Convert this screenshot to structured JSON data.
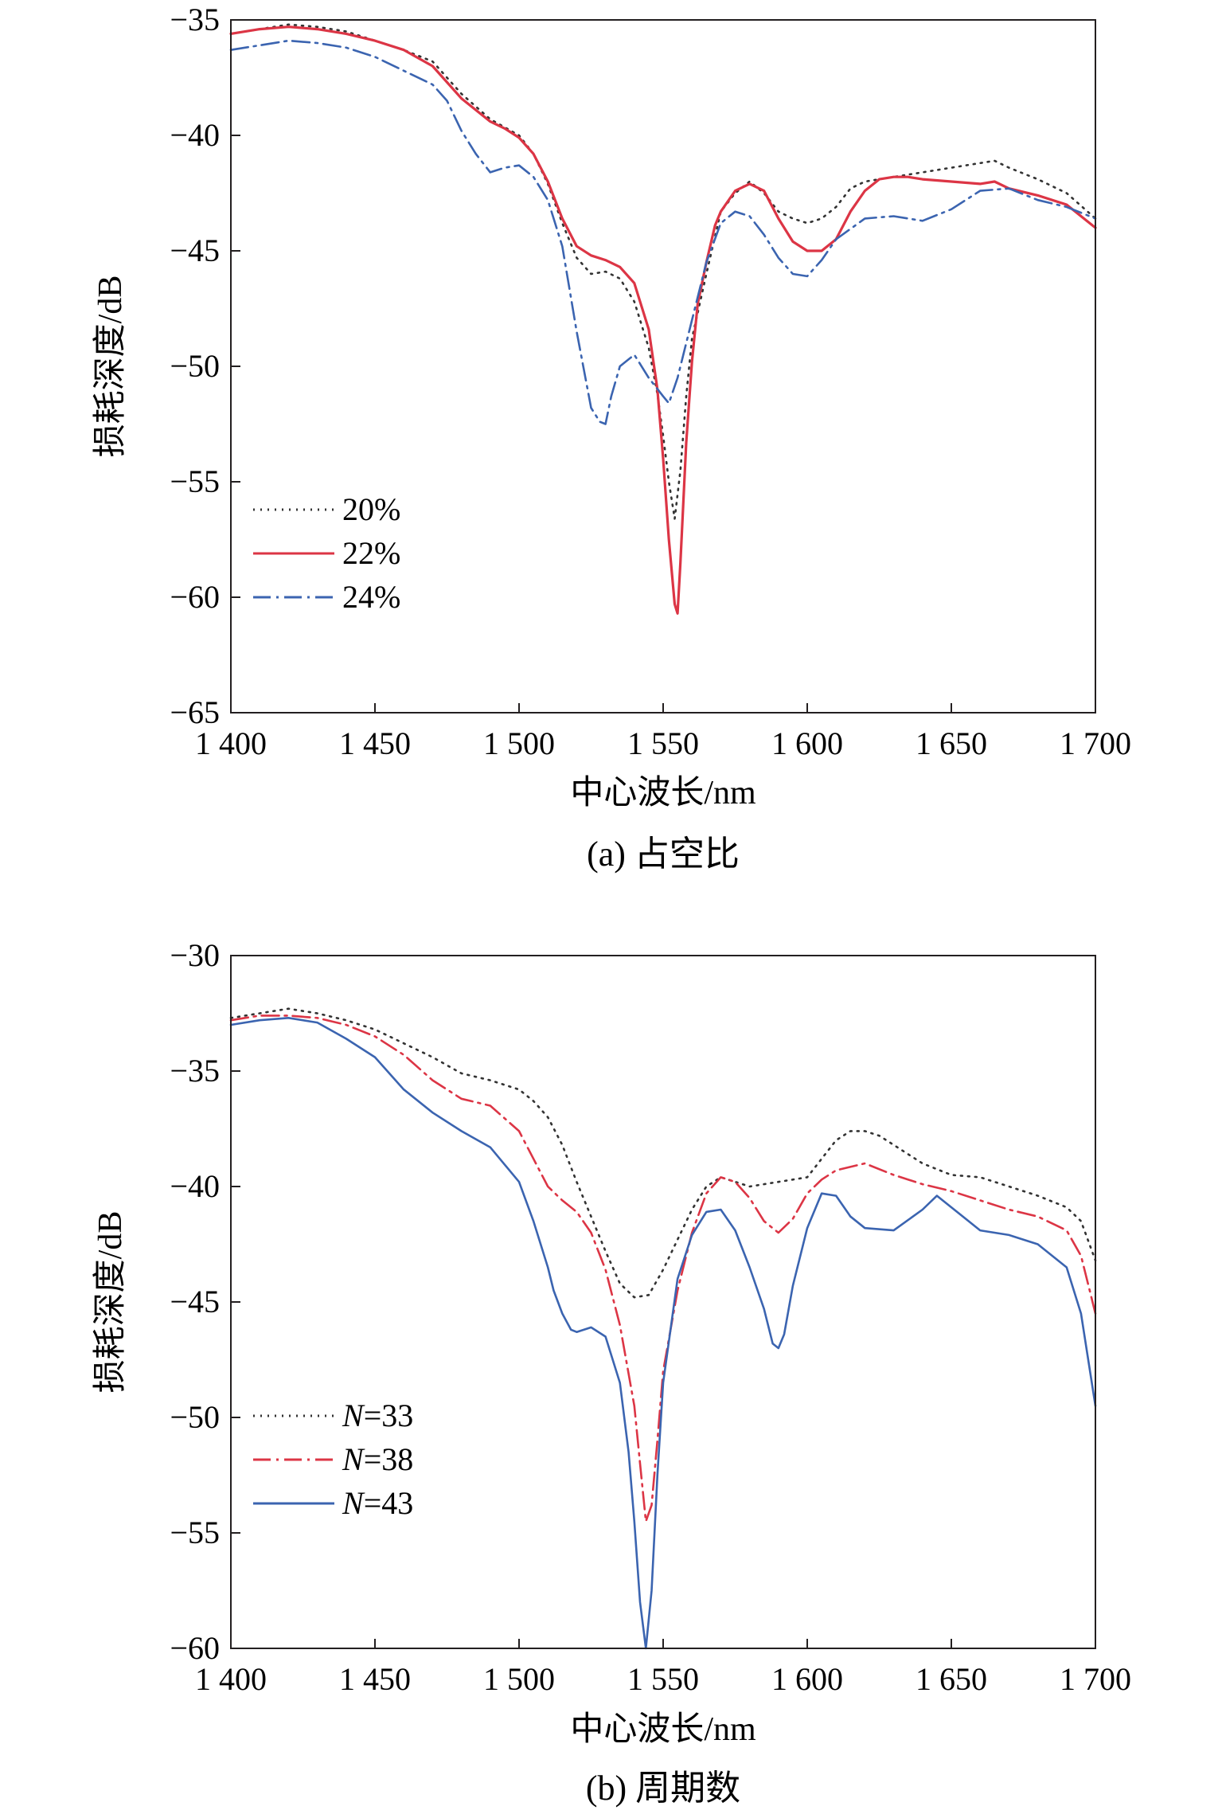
{
  "chart_data": [
    {
      "type": "line",
      "title": "",
      "caption": "(a) 占空比",
      "xlabel": "中心波长/nm",
      "ylabel": "损耗深度/dB",
      "xlim": [
        1400,
        1700
      ],
      "ylim": [
        -65,
        -35
      ],
      "xticks": [
        1400,
        1450,
        1500,
        1550,
        1600,
        1650,
        1700
      ],
      "xtick_labels": [
        "1 400",
        "1 450",
        "1 500",
        "1 550",
        "1 600",
        "1 650",
        "1 700"
      ],
      "yticks": [
        -35,
        -40,
        -45,
        -50,
        -55,
        -60,
        -65
      ],
      "ytick_labels": [
        "−35",
        "−40",
        "−45",
        "−50",
        "−55",
        "−60",
        "−65"
      ],
      "grid": false,
      "legend": "lower-left",
      "series": [
        {
          "name": "20%",
          "color": "#333333",
          "style": "dotted",
          "x": [
            1400,
            1410,
            1420,
            1430,
            1440,
            1450,
            1460,
            1470,
            1480,
            1490,
            1500,
            1505,
            1510,
            1515,
            1520,
            1525,
            1530,
            1535,
            1540,
            1545,
            1548,
            1550,
            1552,
            1554,
            1556,
            1558,
            1560,
            1565,
            1570,
            1575,
            1580,
            1585,
            1590,
            1595,
            1600,
            1605,
            1610,
            1615,
            1620,
            1625,
            1630,
            1640,
            1650,
            1660,
            1665,
            1670,
            1680,
            1690,
            1700
          ],
          "y": [
            -35.6,
            -35.4,
            -35.2,
            -35.3,
            -35.5,
            -35.9,
            -36.3,
            -36.8,
            -38.2,
            -39.3,
            -40.0,
            -40.8,
            -42.1,
            -43.8,
            -45.3,
            -46.0,
            -45.9,
            -46.2,
            -47.2,
            -49.2,
            -51.2,
            -53.0,
            -55.0,
            -56.6,
            -54.5,
            -51.3,
            -48.8,
            -46.0,
            -43.3,
            -42.5,
            -42.0,
            -42.5,
            -43.3,
            -43.6,
            -43.8,
            -43.6,
            -43.1,
            -42.3,
            -42.0,
            -41.9,
            -41.8,
            -41.6,
            -41.4,
            -41.2,
            -41.1,
            -41.4,
            -41.9,
            -42.5,
            -43.6
          ]
        },
        {
          "name": "22%",
          "color": "#dc3545",
          "style": "solid",
          "x": [
            1400,
            1410,
            1420,
            1430,
            1440,
            1450,
            1460,
            1470,
            1480,
            1490,
            1495,
            1500,
            1505,
            1510,
            1515,
            1520,
            1525,
            1530,
            1535,
            1540,
            1545,
            1548,
            1550,
            1552,
            1554,
            1555,
            1556,
            1558,
            1560,
            1562,
            1565,
            1568,
            1570,
            1575,
            1580,
            1585,
            1590,
            1595,
            1600,
            1605,
            1610,
            1615,
            1620,
            1625,
            1630,
            1635,
            1640,
            1650,
            1660,
            1665,
            1670,
            1680,
            1690,
            1700
          ],
          "y": [
            -35.6,
            -35.4,
            -35.3,
            -35.4,
            -35.6,
            -35.9,
            -36.3,
            -37.0,
            -38.4,
            -39.4,
            -39.7,
            -40.1,
            -40.8,
            -42.0,
            -43.6,
            -44.8,
            -45.2,
            -45.4,
            -45.7,
            -46.4,
            -48.4,
            -51.0,
            -54.0,
            -57.5,
            -60.3,
            -60.7,
            -58.5,
            -53.3,
            -49.8,
            -47.3,
            -45.5,
            -43.9,
            -43.3,
            -42.4,
            -42.1,
            -42.4,
            -43.6,
            -44.6,
            -45.0,
            -45.0,
            -44.5,
            -43.3,
            -42.4,
            -41.9,
            -41.8,
            -41.8,
            -41.9,
            -42.0,
            -42.1,
            -42.0,
            -42.3,
            -42.6,
            -43.0,
            -44.0
          ]
        },
        {
          "name": "24%",
          "color": "#3b64b0",
          "style": "dashdot",
          "x": [
            1400,
            1410,
            1420,
            1430,
            1440,
            1450,
            1460,
            1470,
            1475,
            1480,
            1485,
            1490,
            1495,
            1500,
            1505,
            1510,
            1515,
            1520,
            1525,
            1528,
            1530,
            1532,
            1535,
            1540,
            1545,
            1550,
            1552,
            1555,
            1560,
            1565,
            1570,
            1575,
            1580,
            1585,
            1590,
            1595,
            1600,
            1605,
            1610,
            1620,
            1630,
            1640,
            1650,
            1660,
            1670,
            1680,
            1690,
            1700
          ],
          "y": [
            -36.3,
            -36.1,
            -35.9,
            -36.0,
            -36.2,
            -36.6,
            -37.2,
            -37.8,
            -38.5,
            -39.8,
            -40.8,
            -41.6,
            -41.4,
            -41.3,
            -41.8,
            -42.8,
            -44.8,
            -48.5,
            -51.8,
            -52.4,
            -52.5,
            -51.3,
            -50.0,
            -49.5,
            -50.5,
            -51.3,
            -51.6,
            -50.5,
            -48.0,
            -45.5,
            -43.8,
            -43.3,
            -43.5,
            -44.3,
            -45.3,
            -46.0,
            -46.1,
            -45.4,
            -44.5,
            -43.6,
            -43.5,
            -43.7,
            -43.2,
            -42.4,
            -42.3,
            -42.8,
            -43.1,
            -43.6
          ]
        }
      ]
    },
    {
      "type": "line",
      "title": "",
      "caption": "(b) 周期数",
      "xlabel": "中心波长/nm",
      "ylabel": "损耗深度/dB",
      "xlim": [
        1400,
        1700
      ],
      "ylim": [
        -60,
        -30
      ],
      "xticks": [
        1400,
        1450,
        1500,
        1550,
        1600,
        1650,
        1700
      ],
      "xtick_labels": [
        "1 400",
        "1 450",
        "1 500",
        "1 550",
        "1 600",
        "1 650",
        "1 700"
      ],
      "yticks": [
        -30,
        -35,
        -40,
        -45,
        -50,
        -55,
        -60
      ],
      "ytick_labels": [
        "−30",
        "−35",
        "−40",
        "−45",
        "−50",
        "−55",
        "−60"
      ],
      "grid": false,
      "legend": "lower-left",
      "series": [
        {
          "name": "N=33",
          "color": "#333333",
          "style": "dotted",
          "x": [
            1400,
            1410,
            1420,
            1430,
            1440,
            1450,
            1460,
            1470,
            1480,
            1490,
            1500,
            1505,
            1510,
            1515,
            1520,
            1525,
            1530,
            1535,
            1540,
            1545,
            1550,
            1555,
            1560,
            1565,
            1570,
            1575,
            1580,
            1590,
            1600,
            1605,
            1610,
            1615,
            1620,
            1625,
            1630,
            1640,
            1650,
            1660,
            1670,
            1680,
            1690,
            1695,
            1700
          ],
          "y": [
            -32.7,
            -32.5,
            -32.3,
            -32.5,
            -32.8,
            -33.2,
            -33.8,
            -34.4,
            -35.1,
            -35.4,
            -35.8,
            -36.3,
            -37.0,
            -38.2,
            -39.8,
            -41.3,
            -42.8,
            -44.2,
            -44.8,
            -44.7,
            -43.6,
            -42.3,
            -41.0,
            -40.0,
            -39.6,
            -39.8,
            -40.0,
            -39.8,
            -39.6,
            -38.8,
            -38.0,
            -37.6,
            -37.6,
            -37.8,
            -38.2,
            -39.0,
            -39.5,
            -39.6,
            -40.0,
            -40.4,
            -40.9,
            -41.5,
            -43.2
          ]
        },
        {
          "name": "N=38",
          "color": "#dc3545",
          "style": "dashdot",
          "x": [
            1400,
            1410,
            1420,
            1430,
            1440,
            1450,
            1460,
            1470,
            1480,
            1490,
            1500,
            1505,
            1510,
            1515,
            1520,
            1525,
            1530,
            1535,
            1540,
            1542,
            1544,
            1546,
            1548,
            1550,
            1555,
            1560,
            1565,
            1570,
            1575,
            1580,
            1585,
            1590,
            1595,
            1600,
            1605,
            1610,
            1620,
            1630,
            1640,
            1650,
            1660,
            1670,
            1680,
            1690,
            1695,
            1698,
            1700
          ],
          "y": [
            -32.8,
            -32.6,
            -32.6,
            -32.7,
            -33.0,
            -33.5,
            -34.3,
            -35.4,
            -36.2,
            -36.5,
            -37.6,
            -38.8,
            -40.0,
            -40.6,
            -41.1,
            -42.0,
            -43.6,
            -46.0,
            -49.5,
            -52.0,
            -54.5,
            -53.8,
            -51.0,
            -48.0,
            -44.5,
            -42.0,
            -40.3,
            -39.6,
            -39.8,
            -40.5,
            -41.5,
            -42.0,
            -41.4,
            -40.3,
            -39.7,
            -39.3,
            -39.0,
            -39.5,
            -39.9,
            -40.2,
            -40.6,
            -41.0,
            -41.3,
            -41.9,
            -43.0,
            -44.5,
            -45.5
          ]
        },
        {
          "name": "N=43",
          "color": "#3b64b0",
          "style": "solid",
          "x": [
            1400,
            1410,
            1420,
            1430,
            1440,
            1450,
            1460,
            1470,
            1480,
            1490,
            1500,
            1505,
            1510,
            1512,
            1515,
            1518,
            1520,
            1525,
            1530,
            1535,
            1538,
            1540,
            1542,
            1544,
            1546,
            1548,
            1550,
            1555,
            1560,
            1565,
            1570,
            1575,
            1580,
            1585,
            1588,
            1590,
            1592,
            1595,
            1600,
            1605,
            1610,
            1615,
            1620,
            1630,
            1640,
            1645,
            1650,
            1660,
            1670,
            1680,
            1690,
            1695,
            1700
          ],
          "y": [
            -33.0,
            -32.8,
            -32.7,
            -32.9,
            -33.6,
            -34.4,
            -35.8,
            -36.8,
            -37.6,
            -38.3,
            -39.8,
            -41.5,
            -43.5,
            -44.5,
            -45.5,
            -46.2,
            -46.3,
            -46.1,
            -46.5,
            -48.5,
            -51.5,
            -54.5,
            -58.0,
            -60.0,
            -57.5,
            -52.5,
            -48.5,
            -44.0,
            -42.1,
            -41.1,
            -41.0,
            -41.9,
            -43.5,
            -45.3,
            -46.8,
            -47.0,
            -46.4,
            -44.3,
            -41.8,
            -40.3,
            -40.4,
            -41.3,
            -41.8,
            -41.9,
            -41.0,
            -40.4,
            -40.9,
            -41.9,
            -42.1,
            -42.5,
            -43.5,
            -45.5,
            -49.5
          ]
        }
      ]
    }
  ]
}
